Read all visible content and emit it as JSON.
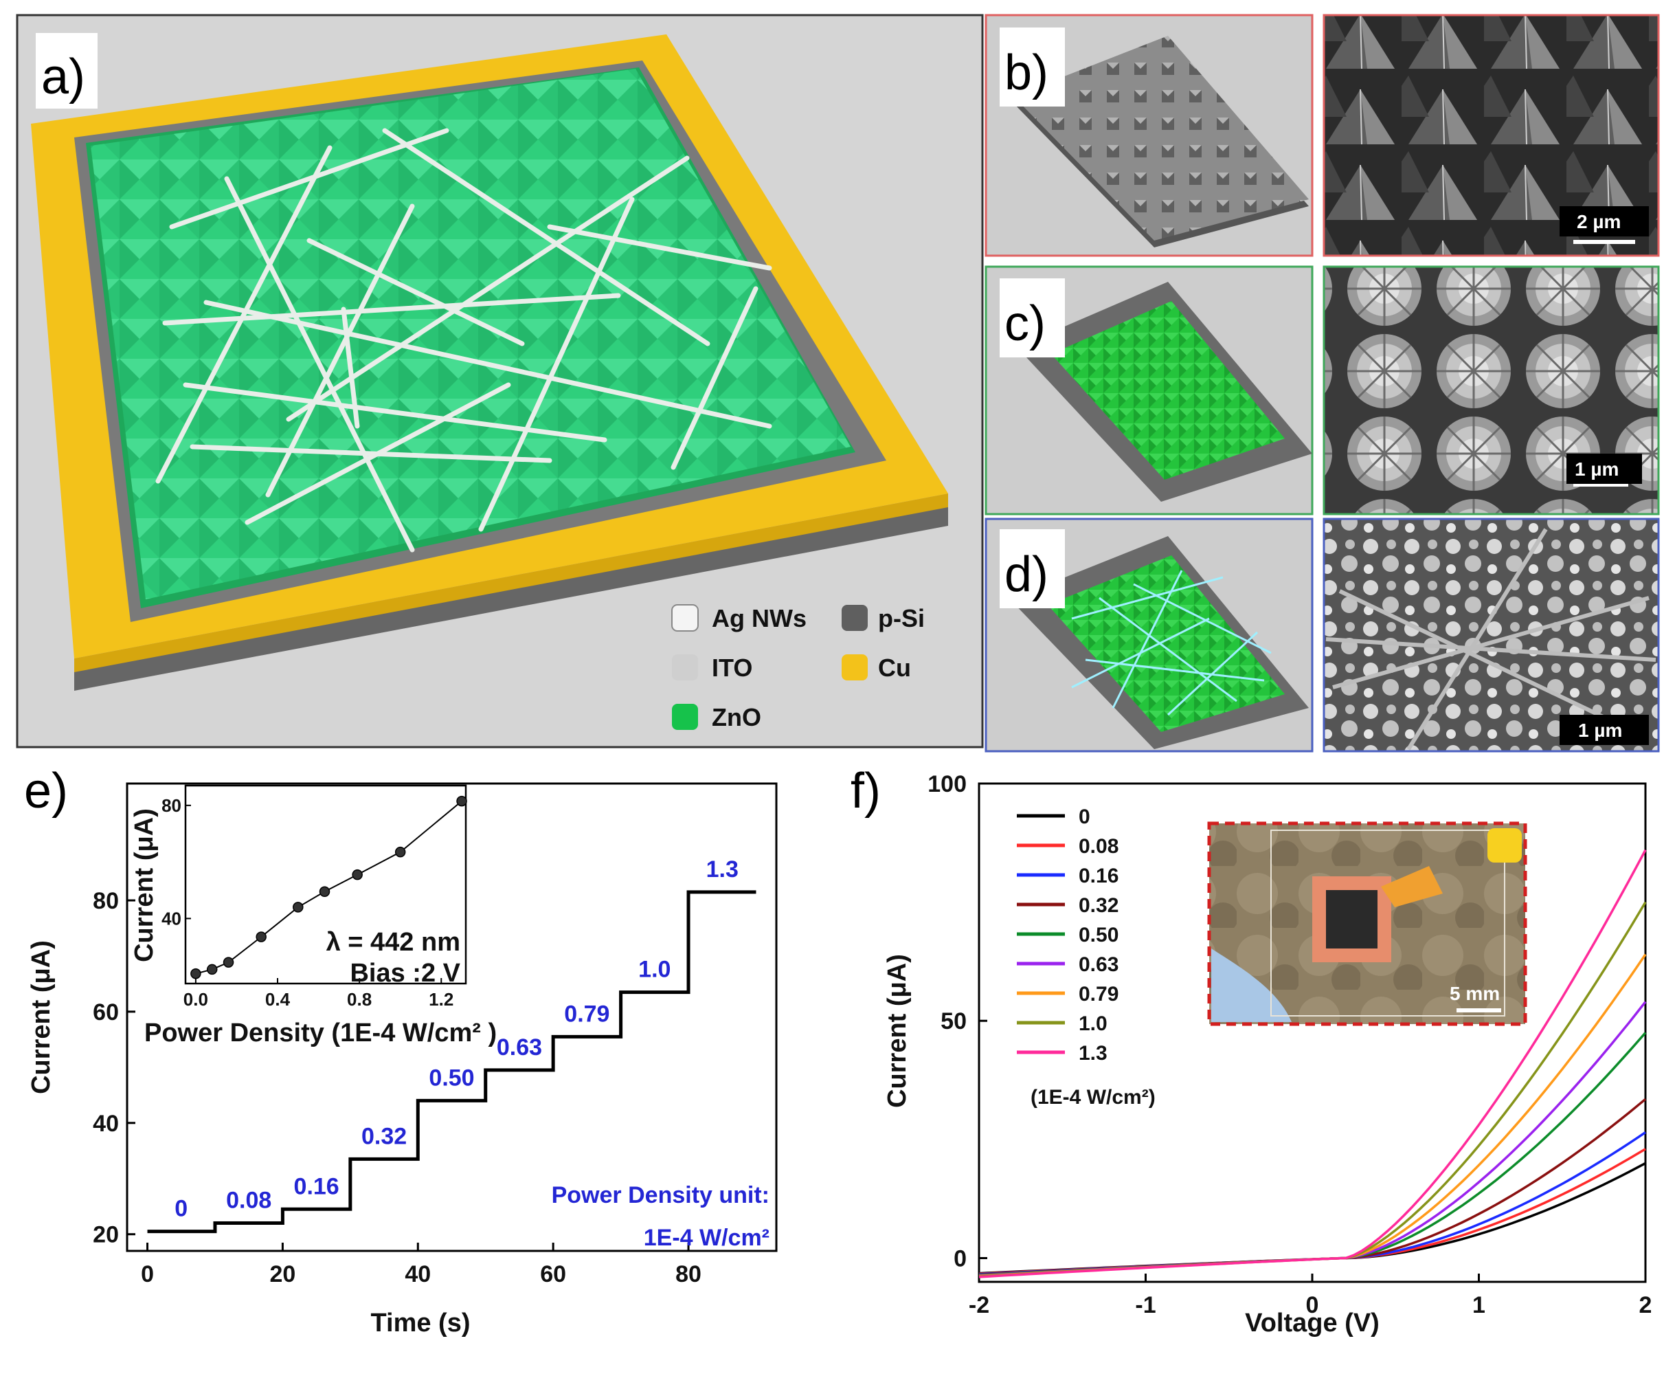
{
  "panels": {
    "a": {
      "label": "a)",
      "legend": [
        {
          "name": "Ag NWs",
          "color": "#f4f4f4"
        },
        {
          "name": "p-Si",
          "color": "#5f5f5f"
        },
        {
          "name": "ITO",
          "color": "#cfcfcf"
        },
        {
          "name": "Cu",
          "color": "#f3c21a"
        },
        {
          "name": "ZnO",
          "color": "#16c24b"
        }
      ]
    },
    "b": {
      "label": "b)",
      "scale": "2 µm",
      "frame_color": "#e06060"
    },
    "c": {
      "label": "c)",
      "scale": "1 µm",
      "frame_color": "#3fa85a"
    },
    "d": {
      "label": "d)",
      "scale": "1 µm",
      "frame_color": "#4a5fc0"
    },
    "e": {
      "label": "e)"
    },
    "f": {
      "label": "f)",
      "photo_scale": "5 mm"
    }
  },
  "chart_data": [
    {
      "id": "e",
      "type": "line",
      "xlabel": "Time (s)",
      "ylabel": "Current (μA)",
      "xlim": [
        -3,
        93
      ],
      "ylim": [
        17,
        101
      ],
      "xticks": [
        0,
        20,
        40,
        60,
        80
      ],
      "yticks": [
        20,
        40,
        60,
        80
      ],
      "step_times": [
        0,
        10,
        20,
        30,
        40,
        50,
        60,
        70,
        80,
        90
      ],
      "step_currents": [
        20.5,
        22,
        24.5,
        33.5,
        44,
        49.5,
        55.5,
        63.5,
        81.5
      ],
      "step_labels": [
        "0",
        "0.08",
        "0.16",
        "0.32",
        "0.50",
        "0.63",
        "0.79",
        "1.0",
        "1.3"
      ],
      "note_line1": "Power Density unit:",
      "note_line2": "1E-4 W/cm²",
      "inset": {
        "type": "scatter",
        "xlabel": "Power Density (1E-4 W/cm²  )",
        "ylabel": "Current (μA)",
        "xlim": [
          -0.05,
          1.32
        ],
        "ylim": [
          17,
          87
        ],
        "xticks": [
          0.0,
          0.4,
          0.8,
          1.2
        ],
        "xtick_labels": [
          "0.0",
          "0.4",
          "0.8",
          "1.2"
        ],
        "yticks": [
          40,
          80
        ],
        "x": [
          0,
          0.08,
          0.16,
          0.32,
          0.5,
          0.63,
          0.79,
          1.0,
          1.3
        ],
        "y": [
          20.5,
          22,
          24.5,
          33.5,
          44,
          49.5,
          55.5,
          63.5,
          81.5
        ],
        "annotation1": "λ = 442 nm",
        "annotation2": "Bias :2 V"
      }
    },
    {
      "id": "f",
      "type": "line",
      "xlabel": "Voltage (V)",
      "ylabel": "Current (μA)",
      "xlim": [
        -2,
        2
      ],
      "ylim": [
        -5,
        100
      ],
      "xticks": [
        -2,
        -1,
        0,
        1,
        2
      ],
      "yticks": [
        0,
        50,
        100
      ],
      "legend_unit": "(1E-4 W/cm²)",
      "series": [
        {
          "name": "0",
          "color": "#000000",
          "end_value": 20
        },
        {
          "name": "0.08",
          "color": "#ff2a2a",
          "end_value": 23
        },
        {
          "name": "0.16",
          "color": "#1a2bff",
          "end_value": 26.5
        },
        {
          "name": "0.32",
          "color": "#8a1010",
          "end_value": 33.5
        },
        {
          "name": "0.50",
          "color": "#0c8c2a",
          "end_value": 47.5
        },
        {
          "name": "0.63",
          "color": "#9a22ee",
          "end_value": 54
        },
        {
          "name": "0.79",
          "color": "#ff9a1a",
          "end_value": 64
        },
        {
          "name": "1.0",
          "color": "#86941a",
          "end_value": 75
        },
        {
          "name": "1.3",
          "color": "#ff2a9a",
          "end_value": 86
        }
      ]
    }
  ]
}
